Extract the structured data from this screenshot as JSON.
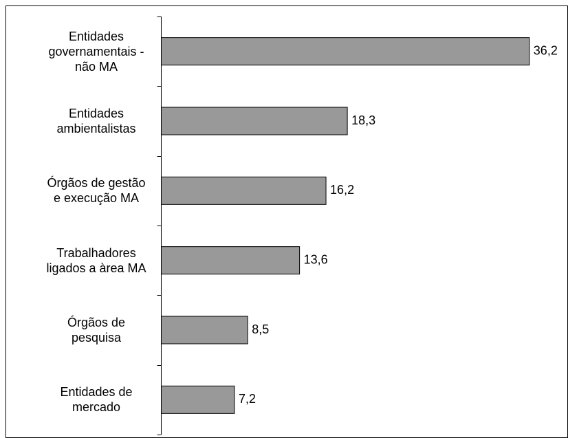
{
  "chart_data": {
    "type": "bar",
    "orientation": "horizontal",
    "categories": [
      "Entidades governamentais - não MA",
      "Entidades ambientalistas",
      "Órgãos de gestão e execução MA",
      "Trabalhadores ligados a àrea MA",
      "Órgãos de pesquisa",
      "Entidades de mercado"
    ],
    "values": [
      36.2,
      18.3,
      16.2,
      13.6,
      8.5,
      7.2
    ],
    "value_labels": [
      "36,2",
      "18,3",
      "16,2",
      "13,6",
      "8,5",
      "7,2"
    ],
    "color": "#999999",
    "xlim": [
      0,
      40
    ]
  }
}
